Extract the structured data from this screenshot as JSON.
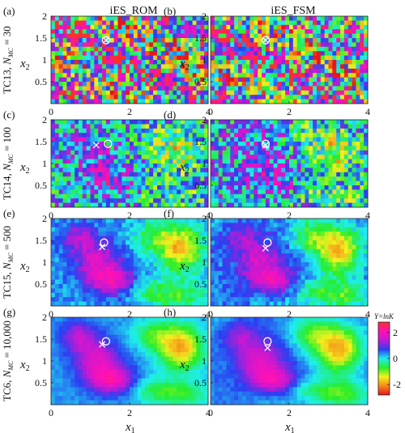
{
  "column_titles": [
    "iES_ROM",
    "iES_FSM"
  ],
  "row_labels": [
    {
      "tc": "TC13, ",
      "n": "N",
      "sub": "MC",
      "val": " = 30"
    },
    {
      "tc": "TC14, ",
      "n": "N",
      "sub": "MC",
      "val": " = 100"
    },
    {
      "tc": "TC15, ",
      "n": "N",
      "sub": "MC",
      "val": " = 500"
    },
    {
      "tc": "TC6, ",
      "n": "N",
      "sub": "MC",
      "val": " = 10,000"
    }
  ],
  "axis_labels": {
    "x_main": "x",
    "x_sub": "1",
    "y_main": "x",
    "y_sub": "2"
  },
  "colorbar": {
    "title": "Y=lnK",
    "ticks": [
      2,
      0,
      -2
    ],
    "range": [
      -2.8,
      2.8
    ],
    "stops": [
      "#e8141e",
      "#f58a1a",
      "#f2f21e",
      "#27ee2a",
      "#1eeeee",
      "#2a3ff2",
      "#c01ad4",
      "#ff10b8",
      "#ff2e2e"
    ]
  },
  "chart_data": [
    {
      "type": "heatmap",
      "panel": "(a)",
      "row": "TC13, N_MC = 30",
      "column": "iES_ROM",
      "x_ticks": [
        0,
        2,
        4
      ],
      "y_ticks": [
        0.5,
        1,
        1.5,
        2
      ],
      "xlim": [
        0,
        4
      ],
      "ylim": [
        0,
        2
      ],
      "markers": [
        {
          "symbol": "o",
          "x": 1.4,
          "y": 1.45
        },
        {
          "symbol": "x",
          "x": 1.4,
          "y": 1.45
        }
      ]
    },
    {
      "type": "heatmap",
      "panel": "(b)",
      "row": "TC13, N_MC = 30",
      "column": "iES_FSM",
      "x_ticks": [
        0,
        2,
        4
      ],
      "y_ticks": [
        0.5,
        1,
        1.5,
        2
      ],
      "xlim": [
        0,
        4
      ],
      "ylim": [
        0,
        2
      ],
      "markers": [
        {
          "symbol": "o",
          "x": 1.4,
          "y": 1.45
        },
        {
          "symbol": "x",
          "x": 1.4,
          "y": 1.45
        }
      ]
    },
    {
      "type": "heatmap",
      "panel": "(c)",
      "row": "TC14, N_MC = 100",
      "column": "iES_ROM",
      "x_ticks": [
        0,
        2,
        4
      ],
      "y_ticks": [
        0.5,
        1,
        1.5,
        2
      ],
      "xlim": [
        0,
        4
      ],
      "ylim": [
        0,
        2
      ],
      "markers": [
        {
          "symbol": "o",
          "x": 1.45,
          "y": 1.45
        },
        {
          "symbol": "x",
          "x": 1.15,
          "y": 1.42
        }
      ]
    },
    {
      "type": "heatmap",
      "panel": "(d)",
      "row": "TC14, N_MC = 100",
      "column": "iES_FSM",
      "x_ticks": [
        0,
        2,
        4
      ],
      "y_ticks": [
        0.5,
        1,
        1.5,
        2
      ],
      "xlim": [
        0,
        4
      ],
      "ylim": [
        0,
        2
      ],
      "markers": [
        {
          "symbol": "o",
          "x": 1.4,
          "y": 1.45
        },
        {
          "symbol": "x",
          "x": 1.4,
          "y": 1.42
        }
      ]
    },
    {
      "type": "heatmap",
      "panel": "(e)",
      "row": "TC15, N_MC = 500",
      "column": "iES_ROM",
      "x_ticks": [
        0,
        2,
        4
      ],
      "y_ticks": [
        0.5,
        1,
        1.5,
        2
      ],
      "xlim": [
        0,
        4
      ],
      "ylim": [
        0,
        2
      ],
      "markers": [
        {
          "symbol": "o",
          "x": 1.35,
          "y": 1.45
        },
        {
          "symbol": "x",
          "x": 1.3,
          "y": 1.35
        }
      ]
    },
    {
      "type": "heatmap",
      "panel": "(f)",
      "row": "TC15, N_MC = 500",
      "column": "iES_FSM",
      "x_ticks": [
        0,
        2,
        4
      ],
      "y_ticks": [
        0.5,
        1,
        1.5,
        2
      ],
      "xlim": [
        0,
        4
      ],
      "ylim": [
        0,
        2
      ],
      "markers": [
        {
          "symbol": "o",
          "x": 1.45,
          "y": 1.45
        },
        {
          "symbol": "x",
          "x": 1.4,
          "y": 1.32
        }
      ]
    },
    {
      "type": "heatmap",
      "panel": "(g)",
      "row": "TC6, N_MC = 10,000",
      "column": "iES_ROM",
      "x_ticks": [
        0,
        2,
        4
      ],
      "y_ticks": [
        0.5,
        1,
        1.5,
        2
      ],
      "xlim": [
        0,
        4
      ],
      "ylim": [
        0,
        2
      ],
      "markers": [
        {
          "symbol": "o",
          "x": 1.4,
          "y": 1.45
        },
        {
          "symbol": "x",
          "x": 1.3,
          "y": 1.38
        }
      ]
    },
    {
      "type": "heatmap",
      "panel": "(h)",
      "row": "TC6, N_MC = 10,000",
      "column": "iES_FSM",
      "x_ticks": [
        0,
        2,
        4
      ],
      "y_ticks": [
        0.5,
        1,
        1.5,
        2
      ],
      "xlim": [
        0,
        4
      ],
      "ylim": [
        0,
        2
      ],
      "markers": [
        {
          "symbol": "o",
          "x": 1.45,
          "y": 1.45
        },
        {
          "symbol": "x",
          "x": 1.45,
          "y": 1.3
        }
      ]
    }
  ]
}
